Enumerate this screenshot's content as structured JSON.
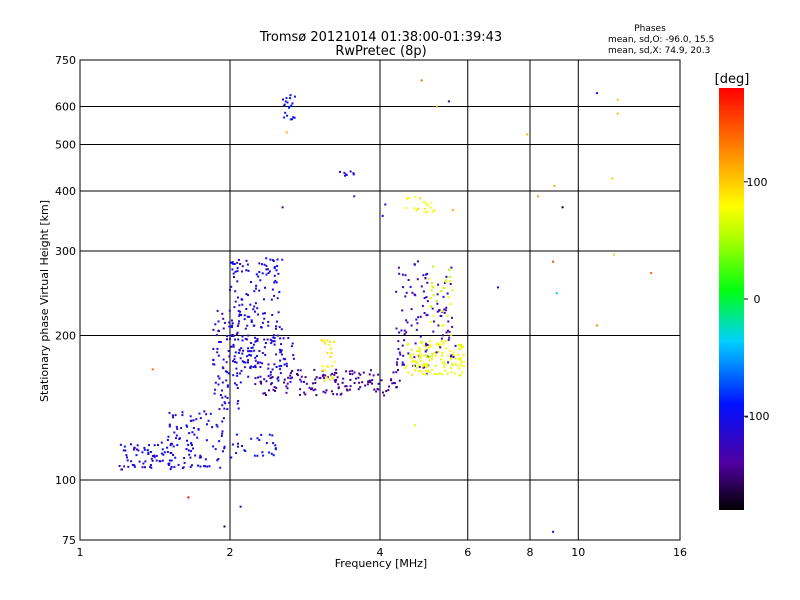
{
  "chart_data": {
    "type": "scatter",
    "title": "Tromsø 20121014 01:38:00-01:39:43",
    "subtitle": "RwPretec (8p)",
    "xlabel": "Frequency [MHz]",
    "ylabel": "Stationary phase Virtual Height [km]",
    "x_scale": "log2",
    "y_scale": "log",
    "xlim": [
      1,
      16
    ],
    "ylim": [
      75,
      750
    ],
    "x_ticks": [
      1,
      2,
      4,
      6,
      8,
      10,
      16
    ],
    "x_tick_labels": [
      "1",
      "2",
      "4",
      "6",
      "8",
      "10",
      "16"
    ],
    "y_ticks": [
      75,
      100,
      200,
      300,
      400,
      500,
      600,
      750
    ],
    "y_tick_labels": [
      "75",
      "100",
      "200",
      "300",
      "400",
      "500",
      "600",
      "750"
    ],
    "grid": true,
    "stats": {
      "heading": "Phases",
      "line1": "mean, sd,O: -96.0, 15.5",
      "line2": "mean, sd,X:  74.9, 20.3"
    },
    "colorbar": {
      "label": "[deg]",
      "range": [
        -180,
        180
      ],
      "ticks": [
        100,
        0,
        -100
      ],
      "tick_labels": [
        "100",
        "0",
        "-100"
      ],
      "colormap": "rainbow"
    },
    "clusters": [
      {
        "x": [
          1.2,
          1.55
        ],
        "y": [
          105,
          120
        ],
        "phase": -110,
        "n": 70
      },
      {
        "x": [
          1.5,
          1.95
        ],
        "y": [
          105,
          140
        ],
        "phase": -105,
        "n": 90
      },
      {
        "x": [
          1.9,
          2.5
        ],
        "y": [
          110,
          125
        ],
        "phase": -100,
        "n": 30
      },
      {
        "x": [
          1.85,
          2.1
        ],
        "y": [
          140,
          230
        ],
        "phase": -115,
        "n": 90
      },
      {
        "x": [
          2.0,
          2.55
        ],
        "y": [
          170,
          290
        ],
        "phase": -108,
        "n": 160
      },
      {
        "x": [
          2.1,
          2.7
        ],
        "y": [
          158,
          200
        ],
        "phase": -115,
        "n": 70
      },
      {
        "x": [
          2.3,
          4.4
        ],
        "y": [
          150,
          170
        ],
        "phase": -140,
        "n": 140
      },
      {
        "x": [
          4.3,
          5.0
        ],
        "y": [
          165,
          290
        ],
        "phase": -125,
        "n": 70
      },
      {
        "x": [
          4.5,
          5.9
        ],
        "y": [
          165,
          195
        ],
        "phase": 75,
        "n": 130
      },
      {
        "x": [
          4.9,
          5.7
        ],
        "y": [
          170,
          280
        ],
        "phase": -130,
        "n": 50
      },
      {
        "x": [
          5.0,
          5.6
        ],
        "y": [
          200,
          280
        ],
        "phase": 65,
        "n": 30
      },
      {
        "x": [
          3.05,
          3.25
        ],
        "y": [
          160,
          200
        ],
        "phase": 80,
        "n": 25
      },
      {
        "x": [
          4.5,
          5.2
        ],
        "y": [
          360,
          390
        ],
        "phase": 85,
        "n": 18
      },
      {
        "x": [
          2.55,
          2.7
        ],
        "y": [
          560,
          640
        ],
        "phase": -95,
        "n": 20
      },
      {
        "x": [
          3.3,
          3.55
        ],
        "y": [
          430,
          440
        ],
        "phase": -110,
        "n": 8
      }
    ],
    "points": [
      {
        "x": 1.4,
        "y": 170,
        "phase": 140
      },
      {
        "x": 1.65,
        "y": 92,
        "phase": 175
      },
      {
        "x": 1.95,
        "y": 80,
        "phase": -160
      },
      {
        "x": 2.1,
        "y": 88,
        "phase": -100
      },
      {
        "x": 2.55,
        "y": 370,
        "phase": -140
      },
      {
        "x": 2.6,
        "y": 530,
        "phase": 110
      },
      {
        "x": 3.55,
        "y": 390,
        "phase": -110
      },
      {
        "x": 4.05,
        "y": 355,
        "phase": -100
      },
      {
        "x": 4.1,
        "y": 375,
        "phase": -110
      },
      {
        "x": 4.85,
        "y": 680,
        "phase": 140
      },
      {
        "x": 5.2,
        "y": 600,
        "phase": 105
      },
      {
        "x": 5.5,
        "y": 615,
        "phase": -120
      },
      {
        "x": 5.6,
        "y": 365,
        "phase": 115
      },
      {
        "x": 4.7,
        "y": 130,
        "phase": 70
      },
      {
        "x": 6.9,
        "y": 252,
        "phase": -90
      },
      {
        "x": 7.9,
        "y": 525,
        "phase": 110
      },
      {
        "x": 8.3,
        "y": 390,
        "phase": 115
      },
      {
        "x": 8.9,
        "y": 285,
        "phase": 150
      },
      {
        "x": 8.95,
        "y": 410,
        "phase": 110
      },
      {
        "x": 9.05,
        "y": 245,
        "phase": -40
      },
      {
        "x": 9.3,
        "y": 370,
        "phase": -175
      },
      {
        "x": 8.9,
        "y": 78,
        "phase": -100
      },
      {
        "x": 10.9,
        "y": 640,
        "phase": -90
      },
      {
        "x": 10.9,
        "y": 210,
        "phase": 130
      },
      {
        "x": 11.7,
        "y": 425,
        "phase": 100
      },
      {
        "x": 11.8,
        "y": 295,
        "phase": 100
      },
      {
        "x": 12.0,
        "y": 620,
        "phase": 105
      },
      {
        "x": 12.0,
        "y": 580,
        "phase": 110
      },
      {
        "x": 14.0,
        "y": 270,
        "phase": 140
      }
    ]
  }
}
